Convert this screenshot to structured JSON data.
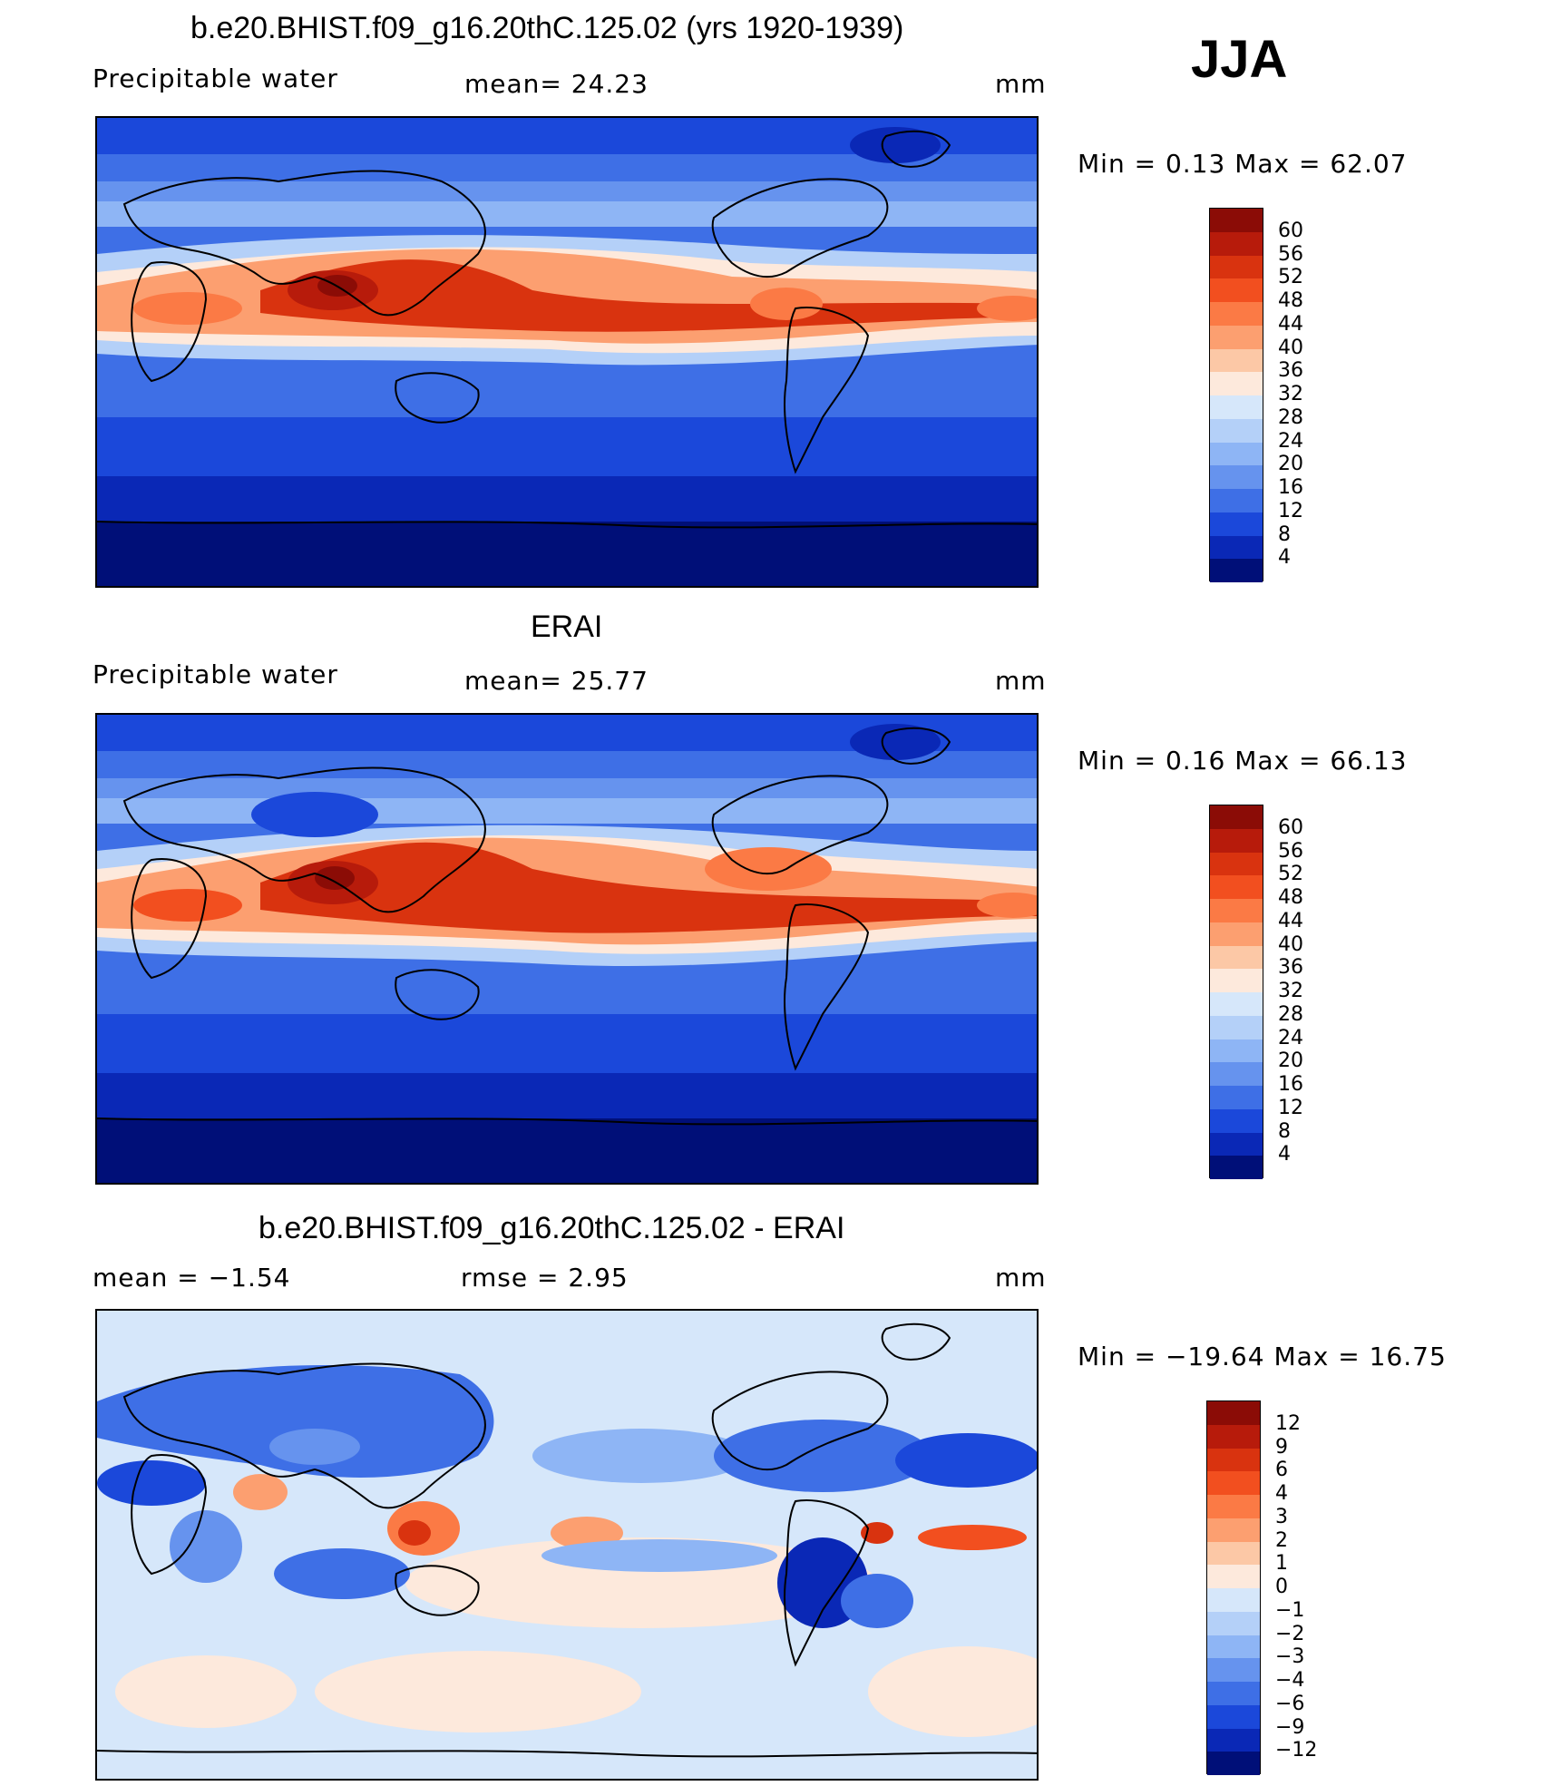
{
  "season": "JJA",
  "panels": [
    {
      "title": "b.e20.BHIST.f09_g16.20thC.125.02 (yrs 1920-1939)",
      "left_label": "Precipitable  water",
      "center_label": "mean=   24.23",
      "units": "mm",
      "minmax": "Min  =     0.13  Max  =    62.07",
      "colorbar": {
        "labels": [
          "60",
          "56",
          "52",
          "48",
          "44",
          "40",
          "36",
          "32",
          "28",
          "24",
          "20",
          "16",
          "12",
          "8",
          "4"
        ],
        "colors": [
          "#8b0c06",
          "#b71b0b",
          "#d9330f",
          "#f24f1f",
          "#fb7a45",
          "#fc9f70",
          "#fcc8a6",
          "#fde9dc",
          "#d6e7fa",
          "#b4d0f8",
          "#8eb5f5",
          "#6693ee",
          "#3e6fe6",
          "#1b48da",
          "#0a28b6",
          "#000f78"
        ]
      }
    },
    {
      "title": "ERAI",
      "left_label": "Precipitable  water",
      "center_label": "mean=   25.77",
      "units": "mm",
      "minmax": "Min  =     0.16  Max  =    66.13",
      "colorbar": {
        "labels": [
          "60",
          "56",
          "52",
          "48",
          "44",
          "40",
          "36",
          "32",
          "28",
          "24",
          "20",
          "16",
          "12",
          "8",
          "4"
        ],
        "colors": [
          "#8b0c06",
          "#b71b0b",
          "#d9330f",
          "#f24f1f",
          "#fb7a45",
          "#fc9f70",
          "#fcc8a6",
          "#fde9dc",
          "#d6e7fa",
          "#b4d0f8",
          "#8eb5f5",
          "#6693ee",
          "#3e6fe6",
          "#1b48da",
          "#0a28b6",
          "#000f78"
        ]
      }
    },
    {
      "title": "b.e20.BHIST.f09_g16.20thC.125.02 - ERAI",
      "left_label": "mean  =    −1.54",
      "center_label": "rmse  =     2.95",
      "units": "mm",
      "minmax": "Min  = −19.64  Max  =    16.75",
      "colorbar": {
        "labels": [
          "12",
          "9",
          "6",
          "4",
          "3",
          "2",
          "1",
          "0",
          "−1",
          "−2",
          "−3",
          "−4",
          "−6",
          "−9",
          "−12"
        ],
        "colors": [
          "#8b0c06",
          "#b71b0b",
          "#d9330f",
          "#f24f1f",
          "#fb7a45",
          "#fc9f70",
          "#fcc8a6",
          "#fde9dc",
          "#d6e7fa",
          "#b4d0f8",
          "#8eb5f5",
          "#6693ee",
          "#3e6fe6",
          "#1b48da",
          "#0a28b6",
          "#000f78"
        ]
      }
    }
  ]
}
